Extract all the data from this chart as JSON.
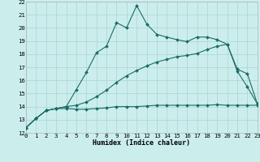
{
  "xlabel": "Humidex (Indice chaleur)",
  "bg_color": "#cbeeed",
  "grid_color": "#b0d8d5",
  "line_color": "#1a6b65",
  "xlim": [
    0,
    23
  ],
  "ylim": [
    12,
    22
  ],
  "yticks": [
    12,
    13,
    14,
    15,
    16,
    17,
    18,
    19,
    20,
    21,
    22
  ],
  "xticks": [
    0,
    1,
    2,
    3,
    4,
    5,
    6,
    7,
    8,
    9,
    10,
    11,
    12,
    13,
    14,
    15,
    16,
    17,
    18,
    19,
    20,
    21,
    22,
    23
  ],
  "line1_x": [
    0,
    1,
    2,
    3,
    4,
    5,
    6,
    7,
    8,
    9,
    10,
    11,
    12,
    13,
    14,
    15,
    16,
    17,
    18,
    19,
    20,
    21,
    22,
    23
  ],
  "line1_y": [
    12.4,
    13.1,
    13.7,
    13.85,
    13.85,
    13.8,
    13.8,
    13.85,
    13.9,
    14.0,
    14.0,
    14.0,
    14.05,
    14.1,
    14.1,
    14.1,
    14.1,
    14.1,
    14.1,
    14.15,
    14.1,
    14.1,
    14.1,
    14.1
  ],
  "line2_x": [
    0,
    1,
    2,
    3,
    4,
    5,
    6,
    7,
    8,
    9,
    10,
    11,
    12,
    13,
    14,
    15,
    16,
    17,
    18,
    19,
    20,
    21,
    22,
    23
  ],
  "line2_y": [
    12.4,
    13.1,
    13.7,
    13.85,
    14.0,
    14.1,
    14.35,
    14.75,
    15.25,
    15.85,
    16.35,
    16.75,
    17.1,
    17.4,
    17.6,
    17.8,
    17.9,
    18.05,
    18.35,
    18.6,
    18.75,
    16.7,
    15.5,
    14.2
  ],
  "line3_x": [
    0,
    1,
    2,
    3,
    4,
    5,
    6,
    7,
    8,
    9,
    10,
    11,
    12,
    13,
    14,
    15,
    16,
    17,
    18,
    19,
    20,
    21,
    22,
    23
  ],
  "line3_y": [
    12.4,
    13.1,
    13.7,
    13.85,
    14.0,
    15.3,
    16.6,
    18.1,
    18.6,
    20.4,
    20.0,
    21.7,
    20.3,
    19.5,
    19.3,
    19.1,
    18.95,
    19.3,
    19.3,
    19.1,
    18.75,
    16.85,
    16.5,
    14.2
  ],
  "xlabel_fontsize": 6.0,
  "tick_fontsize": 5.2
}
